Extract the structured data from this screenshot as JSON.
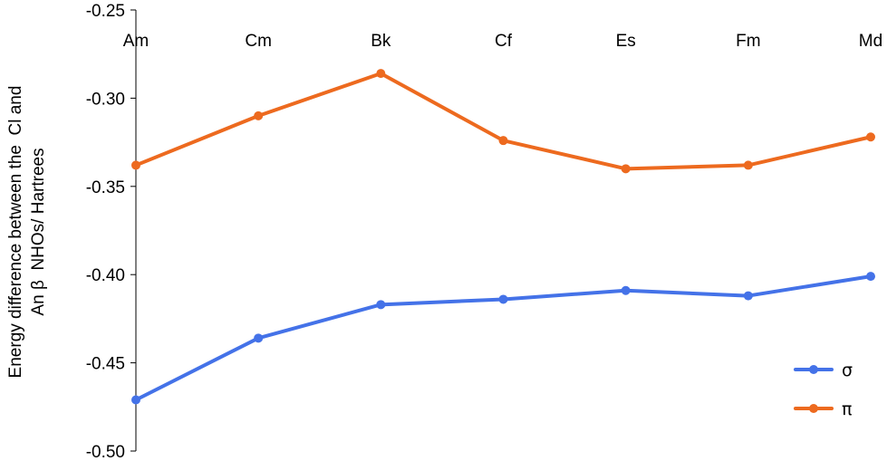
{
  "chart_data": {
    "type": "line",
    "title": "",
    "xlabel": "",
    "ylabel_lines": [
      "Energy difference between the  Cl and",
      "An β  NHOs/ Hartrees"
    ],
    "categories": [
      "Am",
      "Cm",
      "Bk",
      "Cf",
      "Es",
      "Fm",
      "Md"
    ],
    "ylim": [
      -0.5,
      -0.25
    ],
    "yticks": [
      -0.25,
      -0.3,
      -0.35,
      -0.4,
      -0.45,
      -0.5
    ],
    "ytick_labels": [
      "-0.25",
      "-0.30",
      "-0.35",
      "-0.40",
      "-0.45",
      "-0.50"
    ],
    "x_axis_position": "top",
    "grid": false,
    "legend_position": "bottom-right",
    "series": [
      {
        "name": "σ",
        "color": "#4472E8",
        "values": [
          -0.471,
          -0.436,
          -0.417,
          -0.414,
          -0.409,
          -0.412,
          -0.401
        ]
      },
      {
        "name": "π",
        "color": "#ED6A1F",
        "values": [
          -0.338,
          -0.31,
          -0.286,
          -0.324,
          -0.34,
          -0.338,
          -0.322
        ]
      }
    ]
  }
}
